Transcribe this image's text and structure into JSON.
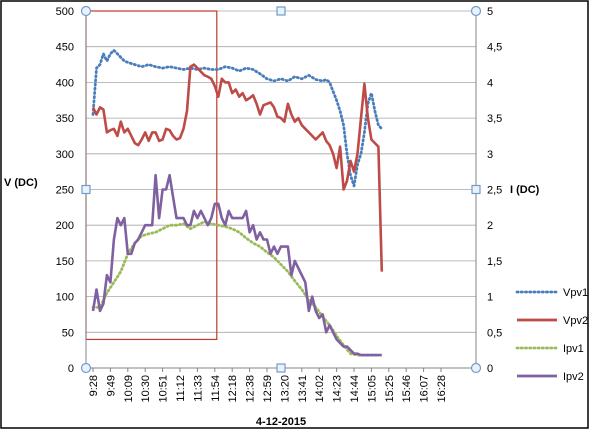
{
  "chart_data": {
    "type": "line",
    "xlabel": "4-12-2015",
    "ylabel_left": "V (DC)",
    "ylabel_right": "I (DC)",
    "ylim_left": [
      0,
      500
    ],
    "ylim_right": [
      0,
      5
    ],
    "yticks_left": [
      "0",
      "50",
      "100",
      "150",
      "200",
      "250",
      "300",
      "350",
      "400",
      "450",
      "500"
    ],
    "yticks_right": [
      "0",
      "0,5",
      "1",
      "1,5",
      "2",
      "2,5",
      "3",
      "3,5",
      "4",
      "4,5",
      "5"
    ],
    "x_count": 100,
    "xticks": [
      {
        "label": "9:28",
        "i": 0
      },
      {
        "label": "9:49",
        "i": 5
      },
      {
        "label": "10:09",
        "i": 10
      },
      {
        "label": "10:30",
        "i": 15
      },
      {
        "label": "10:51",
        "i": 20
      },
      {
        "label": "11:12",
        "i": 25
      },
      {
        "label": "11:33",
        "i": 30
      },
      {
        "label": "11:54",
        "i": 35
      },
      {
        "label": "12:18",
        "i": 40
      },
      {
        "label": "12:38",
        "i": 45
      },
      {
        "label": "12:59",
        "i": 50
      },
      {
        "label": "13:20",
        "i": 55
      },
      {
        "label": "13:41",
        "i": 60
      },
      {
        "label": "14:02",
        "i": 65
      },
      {
        "label": "14:23",
        "i": 70
      },
      {
        "label": "14:44",
        "i": 75
      },
      {
        "label": "15:05",
        "i": 80
      },
      {
        "label": "15:25",
        "i": 85
      },
      {
        "label": "15:46",
        "i": 90
      },
      {
        "label": "16:07",
        "i": 95
      },
      {
        "label": "16:28",
        "i": 100
      }
    ],
    "legend": "right",
    "grid": true,
    "series": [
      {
        "name": "Vpv1",
        "axis": "left",
        "color": "#4a7ebb",
        "style": "dotted",
        "points": [
          [
            0,
            355
          ],
          [
            1,
            420
          ],
          [
            2,
            425
          ],
          [
            3,
            440
          ],
          [
            4,
            430
          ],
          [
            5,
            440
          ],
          [
            6,
            445
          ],
          [
            7,
            440
          ],
          [
            8,
            435
          ],
          [
            9,
            430
          ],
          [
            10,
            428
          ],
          [
            12,
            425
          ],
          [
            14,
            422
          ],
          [
            16,
            425
          ],
          [
            18,
            422
          ],
          [
            20,
            420
          ],
          [
            22,
            422
          ],
          [
            24,
            420
          ],
          [
            26,
            418
          ],
          [
            28,
            420
          ],
          [
            30,
            418
          ],
          [
            32,
            420
          ],
          [
            34,
            418
          ],
          [
            36,
            418
          ],
          [
            38,
            422
          ],
          [
            40,
            420
          ],
          [
            42,
            416
          ],
          [
            44,
            420
          ],
          [
            46,
            418
          ],
          [
            48,
            412
          ],
          [
            50,
            405
          ],
          [
            52,
            402
          ],
          [
            54,
            405
          ],
          [
            56,
            402
          ],
          [
            58,
            408
          ],
          [
            60,
            405
          ],
          [
            62,
            410
          ],
          [
            64,
            404
          ],
          [
            66,
            402
          ],
          [
            67,
            404
          ],
          [
            68,
            400
          ],
          [
            70,
            375
          ],
          [
            71,
            360
          ],
          [
            72,
            340
          ],
          [
            73,
            300
          ],
          [
            74,
            270
          ],
          [
            75,
            255
          ],
          [
            76,
            285
          ],
          [
            77,
            300
          ],
          [
            78,
            330
          ],
          [
            79,
            370
          ],
          [
            80,
            385
          ],
          [
            81,
            360
          ],
          [
            82,
            340
          ],
          [
            83,
            335
          ]
        ]
      },
      {
        "name": "Vpv2",
        "axis": "left",
        "color": "#be4b48",
        "style": "solid",
        "points": [
          [
            0,
            365
          ],
          [
            1,
            355
          ],
          [
            2,
            365
          ],
          [
            3,
            362
          ],
          [
            4,
            330
          ],
          [
            5,
            333
          ],
          [
            6,
            335
          ],
          [
            7,
            325
          ],
          [
            8,
            345
          ],
          [
            9,
            330
          ],
          [
            10,
            335
          ],
          [
            11,
            325
          ],
          [
            12,
            315
          ],
          [
            13,
            312
          ],
          [
            14,
            320
          ],
          [
            15,
            330
          ],
          [
            16,
            318
          ],
          [
            17,
            330
          ],
          [
            18,
            330
          ],
          [
            19,
            318
          ],
          [
            20,
            320
          ],
          [
            21,
            335
          ],
          [
            22,
            333
          ],
          [
            23,
            325
          ],
          [
            24,
            320
          ],
          [
            25,
            322
          ],
          [
            26,
            335
          ],
          [
            27,
            360
          ],
          [
            28,
            422
          ],
          [
            29,
            425
          ],
          [
            30,
            420
          ],
          [
            31,
            415
          ],
          [
            32,
            410
          ],
          [
            33,
            408
          ],
          [
            34,
            405
          ],
          [
            35,
            395
          ],
          [
            36,
            380
          ],
          [
            37,
            405
          ],
          [
            38,
            400
          ],
          [
            39,
            400
          ],
          [
            40,
            385
          ],
          [
            41,
            390
          ],
          [
            42,
            380
          ],
          [
            43,
            385
          ],
          [
            44,
            375
          ],
          [
            45,
            378
          ],
          [
            46,
            382
          ],
          [
            47,
            370
          ],
          [
            48,
            355
          ],
          [
            49,
            368
          ],
          [
            50,
            370
          ],
          [
            51,
            372
          ],
          [
            52,
            365
          ],
          [
            53,
            352
          ],
          [
            54,
            350
          ],
          [
            55,
            345
          ],
          [
            56,
            370
          ],
          [
            57,
            355
          ],
          [
            58,
            345
          ],
          [
            59,
            350
          ],
          [
            60,
            340
          ],
          [
            61,
            335
          ],
          [
            62,
            330
          ],
          [
            63,
            325
          ],
          [
            64,
            320
          ],
          [
            65,
            325
          ],
          [
            66,
            330
          ],
          [
            67,
            318
          ],
          [
            68,
            312
          ],
          [
            69,
            300
          ],
          [
            70,
            280
          ],
          [
            71,
            310
          ],
          [
            72,
            250
          ],
          [
            73,
            262
          ],
          [
            74,
            290
          ],
          [
            75,
            275
          ],
          [
            76,
            300
          ],
          [
            77,
            350
          ],
          [
            78,
            398
          ],
          [
            79,
            350
          ],
          [
            80,
            320
          ],
          [
            81,
            315
          ],
          [
            82,
            310
          ],
          [
            83,
            135
          ]
        ]
      },
      {
        "name": "Ipv1",
        "axis": "right",
        "color": "#9bbb59",
        "style": "dotted",
        "points": [
          [
            0,
            0.85
          ],
          [
            2,
            0.85
          ],
          [
            4,
            1.05
          ],
          [
            6,
            1.2
          ],
          [
            8,
            1.35
          ],
          [
            10,
            1.6
          ],
          [
            12,
            1.75
          ],
          [
            14,
            1.85
          ],
          [
            16,
            1.88
          ],
          [
            18,
            1.9
          ],
          [
            20,
            1.95
          ],
          [
            22,
            2.0
          ],
          [
            24,
            2.0
          ],
          [
            26,
            2.02
          ],
          [
            28,
            1.95
          ],
          [
            30,
            2.0
          ],
          [
            32,
            2.05
          ],
          [
            34,
            2.02
          ],
          [
            36,
            2.0
          ],
          [
            38,
            1.98
          ],
          [
            40,
            1.95
          ],
          [
            42,
            1.9
          ],
          [
            44,
            1.82
          ],
          [
            46,
            1.75
          ],
          [
            48,
            1.7
          ],
          [
            50,
            1.62
          ],
          [
            52,
            1.55
          ],
          [
            54,
            1.45
          ],
          [
            56,
            1.35
          ],
          [
            58,
            1.22
          ],
          [
            60,
            1.1
          ],
          [
            62,
            0.95
          ],
          [
            64,
            0.85
          ],
          [
            66,
            0.72
          ],
          [
            68,
            0.6
          ],
          [
            70,
            0.45
          ],
          [
            72,
            0.32
          ],
          [
            74,
            0.2
          ],
          [
            76,
            0.18
          ],
          [
            78,
            0.18
          ],
          [
            80,
            0.18
          ],
          [
            82,
            0.18
          ]
        ]
      },
      {
        "name": "Ipv2",
        "axis": "right",
        "color": "#7f60a0",
        "style": "solid",
        "points": [
          [
            0,
            0.8
          ],
          [
            1,
            1.1
          ],
          [
            2,
            0.8
          ],
          [
            3,
            0.9
          ],
          [
            4,
            1.3
          ],
          [
            5,
            1.2
          ],
          [
            6,
            1.8
          ],
          [
            7,
            2.1
          ],
          [
            8,
            2.0
          ],
          [
            9,
            2.1
          ],
          [
            10,
            1.6
          ],
          [
            11,
            1.6
          ],
          [
            12,
            1.75
          ],
          [
            13,
            1.8
          ],
          [
            14,
            1.9
          ],
          [
            15,
            2.0
          ],
          [
            16,
            2.0
          ],
          [
            17,
            2.0
          ],
          [
            18,
            2.7
          ],
          [
            19,
            2.1
          ],
          [
            20,
            2.5
          ],
          [
            21,
            2.5
          ],
          [
            22,
            2.7
          ],
          [
            23,
            2.4
          ],
          [
            24,
            2.1
          ],
          [
            25,
            2.1
          ],
          [
            26,
            2.1
          ],
          [
            27,
            2.0
          ],
          [
            28,
            2.0
          ],
          [
            29,
            2.2
          ],
          [
            30,
            2.1
          ],
          [
            31,
            2.2
          ],
          [
            32,
            2.1
          ],
          [
            33,
            2.0
          ],
          [
            34,
            2.1
          ],
          [
            35,
            2.3
          ],
          [
            36,
            2.3
          ],
          [
            37,
            2.1
          ],
          [
            38,
            2.0
          ],
          [
            39,
            2.2
          ],
          [
            40,
            2.1
          ],
          [
            41,
            2.1
          ],
          [
            42,
            2.1
          ],
          [
            43,
            2.1
          ],
          [
            44,
            2.2
          ],
          [
            45,
            1.9
          ],
          [
            46,
            2.0
          ],
          [
            47,
            1.8
          ],
          [
            48,
            1.9
          ],
          [
            49,
            1.8
          ],
          [
            50,
            1.8
          ],
          [
            51,
            1.6
          ],
          [
            52,
            1.7
          ],
          [
            53,
            1.6
          ],
          [
            54,
            1.7
          ],
          [
            55,
            1.7
          ],
          [
            56,
            1.7
          ],
          [
            57,
            1.3
          ],
          [
            58,
            1.5
          ],
          [
            59,
            1.4
          ],
          [
            60,
            1.3
          ],
          [
            61,
            1.2
          ],
          [
            62,
            0.8
          ],
          [
            63,
            1.0
          ],
          [
            64,
            0.8
          ],
          [
            65,
            0.7
          ],
          [
            66,
            0.75
          ],
          [
            67,
            0.5
          ],
          [
            68,
            0.6
          ],
          [
            69,
            0.5
          ],
          [
            70,
            0.4
          ],
          [
            71,
            0.35
          ],
          [
            72,
            0.3
          ],
          [
            73,
            0.3
          ],
          [
            74,
            0.25
          ],
          [
            75,
            0.2
          ],
          [
            76,
            0.2
          ],
          [
            77,
            0.18
          ],
          [
            78,
            0.18
          ],
          [
            79,
            0.18
          ],
          [
            80,
            0.18
          ],
          [
            81,
            0.18
          ],
          [
            82,
            0.18
          ],
          [
            83,
            0.18
          ]
        ]
      }
    ],
    "highlight": {
      "i_start": 0,
      "i_end": 35,
      "v_min": 40,
      "v_max": 500,
      "color": "#c0392b"
    }
  }
}
